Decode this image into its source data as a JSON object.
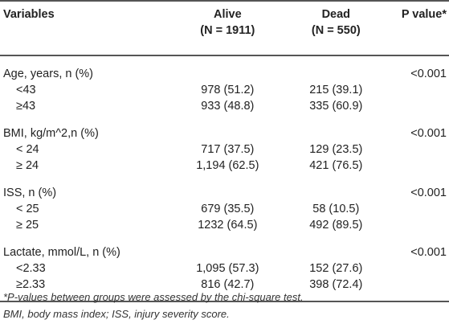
{
  "table": {
    "headers": {
      "variables": "Variables",
      "alive": "Alive",
      "alive_n": "(N = 1911)",
      "dead": "Dead",
      "dead_n": "(N = 550)",
      "p_value": "P value*"
    },
    "groups": [
      {
        "label": "Age, years, n (%)",
        "p": "<0.001",
        "rows": [
          {
            "label": "<43",
            "alive": "978 (51.2)",
            "dead": "215 (39.1)"
          },
          {
            "label": "≥43",
            "alive": "933 (48.8)",
            "dead": "335 (60.9)"
          }
        ]
      },
      {
        "label": "BMI, kg/m^2,n (%)",
        "p": "<0.001",
        "rows": [
          {
            "label": "< 24",
            "alive": "717 (37.5)",
            "dead": "129 (23.5)"
          },
          {
            "label": "≥ 24",
            "alive": "1,194 (62.5)",
            "dead": "421 (76.5)"
          }
        ]
      },
      {
        "label": "ISS, n (%)",
        "p": "<0.001",
        "rows": [
          {
            "label": "< 25",
            "alive": "679 (35.5)",
            "dead": "58 (10.5)"
          },
          {
            "label": "≥ 25",
            "alive": "1232 (64.5)",
            "dead": "492 (89.5)"
          }
        ]
      },
      {
        "label": "Lactate, mmol/L, n (%)",
        "p": "<0.001",
        "rows": [
          {
            "label": "<2.33",
            "alive": "1,095 (57.3)",
            "dead": "152 (27.6)"
          },
          {
            "label": "≥2.33",
            "alive": "816 (42.7)",
            "dead": "398 (72.4)"
          }
        ]
      }
    ]
  },
  "footnotes": {
    "line1": "*P-values between groups were assessed by the chi-square test.",
    "line2": "BMI, body mass index; ISS, injury severity score."
  }
}
